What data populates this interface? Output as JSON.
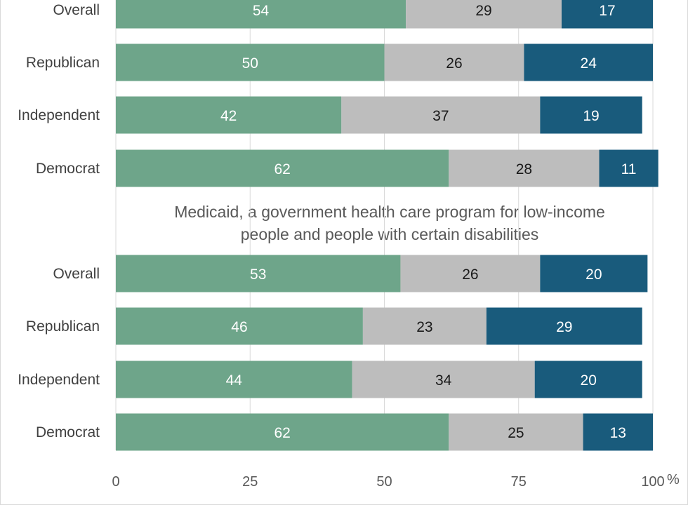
{
  "chart_data": {
    "type": "bar",
    "orientation": "horizontal",
    "stacked": true,
    "xlim": [
      0,
      100
    ],
    "x_ticks": [
      "0",
      "25",
      "50",
      "75",
      "100"
    ],
    "x_unit_label": "%",
    "grid": true,
    "colors": [
      "#6ea58a",
      "#bdbdbd",
      "#195b7c"
    ],
    "panels": [
      {
        "title_lines": [],
        "categories": [
          "Overall",
          "Republican",
          "Independent",
          "Democrat"
        ],
        "series": [
          {
            "values": [
              54,
              50,
              42,
              62
            ]
          },
          {
            "values": [
              29,
              26,
              37,
              28
            ]
          },
          {
            "values": [
              17,
              24,
              19,
              11
            ]
          }
        ]
      },
      {
        "title_lines": [
          "Medicaid, a government health care program for low-income",
          "people and people with certain disabilities"
        ],
        "categories": [
          "Overall",
          "Republican",
          "Independent",
          "Democrat"
        ],
        "series": [
          {
            "values": [
              53,
              46,
              44,
              62
            ]
          },
          {
            "values": [
              26,
              23,
              34,
              25
            ]
          },
          {
            "values": [
              20,
              29,
              20,
              13
            ]
          }
        ]
      }
    ]
  }
}
